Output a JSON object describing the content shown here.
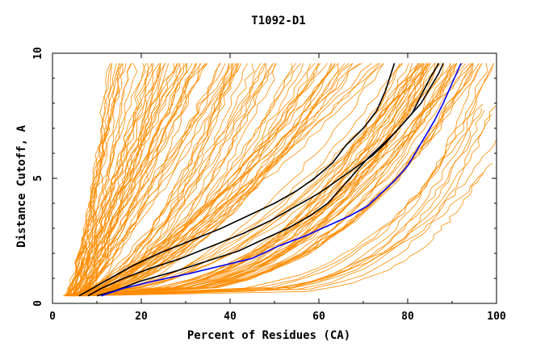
{
  "chart_data": {
    "type": "line",
    "title": "T1092-D1",
    "xlabel": "Percent of Residues (CA)",
    "ylabel": "Distance Cutoff, A",
    "xlim": [
      0,
      100
    ],
    "ylim": [
      0,
      10
    ],
    "x_ticks": [
      0,
      20,
      40,
      60,
      80,
      100
    ],
    "y_ticks": [
      0,
      5,
      10
    ],
    "grid": false,
    "legend": "none",
    "colors": {
      "background": "#orange",
      "models": "#ff8c00",
      "highlight_black": "#000000",
      "highlight_blue": "#0000ff",
      "axes": "#000000"
    },
    "background_series_count": 150,
    "series": [
      {
        "color": "#000000",
        "x": [
          6,
          9,
          13,
          18,
          24,
          31,
          38,
          44,
          50,
          55,
          59,
          63,
          66,
          70,
          73,
          75,
          77
        ],
        "y": [
          0.3,
          0.6,
          1.0,
          1.5,
          2.0,
          2.5,
          3.0,
          3.5,
          4.0,
          4.5,
          5.0,
          5.6,
          6.3,
          7.0,
          7.7,
          8.5,
          9.6
        ]
      },
      {
        "color": "#000000",
        "x": [
          8,
          11,
          16,
          22,
          29,
          36,
          43,
          49,
          55,
          60,
          64,
          68,
          72,
          75,
          78,
          81,
          83,
          85,
          87
        ],
        "y": [
          0.3,
          0.6,
          1.0,
          1.4,
          1.8,
          2.3,
          2.8,
          3.3,
          3.9,
          4.4,
          4.9,
          5.4,
          5.9,
          6.4,
          7.0,
          7.6,
          8.3,
          9.0,
          9.6
        ]
      },
      {
        "color": "#000000",
        "x": [
          10,
          14,
          20,
          28,
          35,
          42,
          48,
          53,
          58,
          62,
          65,
          68,
          71,
          74,
          77,
          80,
          83,
          85,
          87,
          88
        ],
        "y": [
          0.3,
          0.5,
          0.9,
          1.3,
          1.7,
          2.1,
          2.6,
          3.0,
          3.5,
          4.0,
          4.6,
          5.2,
          5.8,
          6.3,
          6.8,
          7.4,
          8.0,
          8.6,
          9.2,
          9.6
        ]
      },
      {
        "color": "#0000ff",
        "x": [
          11,
          16,
          23,
          31,
          38,
          45,
          51,
          57,
          62,
          67,
          71,
          74,
          77,
          80,
          82,
          84,
          86,
          88,
          90,
          92
        ],
        "y": [
          0.3,
          0.6,
          0.9,
          1.2,
          1.5,
          1.8,
          2.3,
          2.7,
          3.1,
          3.5,
          3.9,
          4.4,
          4.9,
          5.5,
          6.1,
          6.7,
          7.3,
          8.0,
          8.8,
          9.6
        ]
      }
    ]
  }
}
